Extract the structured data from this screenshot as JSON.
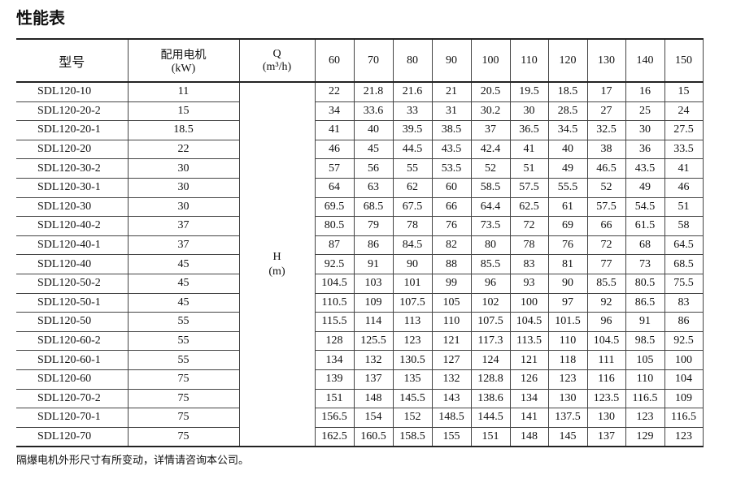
{
  "title": "性能表",
  "header": {
    "model": "型号",
    "motor_line1": "配用电机",
    "motor_line2": "(kW)",
    "q_line1": "Q",
    "q_line2": "(m³/h)",
    "h_line1": "H",
    "h_line2": "(m)",
    "flows": [
      "60",
      "70",
      "80",
      "90",
      "100",
      "110",
      "120",
      "130",
      "140",
      "150"
    ]
  },
  "rows": [
    {
      "model": "SDL120-10",
      "kw": "11",
      "h": [
        "22",
        "21.8",
        "21.6",
        "21",
        "20.5",
        "19.5",
        "18.5",
        "17",
        "16",
        "15"
      ]
    },
    {
      "model": "SDL120-20-2",
      "kw": "15",
      "h": [
        "34",
        "33.6",
        "33",
        "31",
        "30.2",
        "30",
        "28.5",
        "27",
        "25",
        "24"
      ]
    },
    {
      "model": "SDL120-20-1",
      "kw": "18.5",
      "h": [
        "41",
        "40",
        "39.5",
        "38.5",
        "37",
        "36.5",
        "34.5",
        "32.5",
        "30",
        "27.5"
      ]
    },
    {
      "model": "SDL120-20",
      "kw": "22",
      "h": [
        "46",
        "45",
        "44.5",
        "43.5",
        "42.4",
        "41",
        "40",
        "38",
        "36",
        "33.5"
      ]
    },
    {
      "model": "SDL120-30-2",
      "kw": "30",
      "h": [
        "57",
        "56",
        "55",
        "53.5",
        "52",
        "51",
        "49",
        "46.5",
        "43.5",
        "41"
      ]
    },
    {
      "model": "SDL120-30-1",
      "kw": "30",
      "h": [
        "64",
        "63",
        "62",
        "60",
        "58.5",
        "57.5",
        "55.5",
        "52",
        "49",
        "46"
      ]
    },
    {
      "model": "SDL120-30",
      "kw": "30",
      "h": [
        "69.5",
        "68.5",
        "67.5",
        "66",
        "64.4",
        "62.5",
        "61",
        "57.5",
        "54.5",
        "51"
      ]
    },
    {
      "model": "SDL120-40-2",
      "kw": "37",
      "h": [
        "80.5",
        "79",
        "78",
        "76",
        "73.5",
        "72",
        "69",
        "66",
        "61.5",
        "58"
      ]
    },
    {
      "model": "SDL120-40-1",
      "kw": "37",
      "h": [
        "87",
        "86",
        "84.5",
        "82",
        "80",
        "78",
        "76",
        "72",
        "68",
        "64.5"
      ]
    },
    {
      "model": "SDL120-40",
      "kw": "45",
      "h": [
        "92.5",
        "91",
        "90",
        "88",
        "85.5",
        "83",
        "81",
        "77",
        "73",
        "68.5"
      ]
    },
    {
      "model": "SDL120-50-2",
      "kw": "45",
      "h": [
        "104.5",
        "103",
        "101",
        "99",
        "96",
        "93",
        "90",
        "85.5",
        "80.5",
        "75.5"
      ]
    },
    {
      "model": "SDL120-50-1",
      "kw": "45",
      "h": [
        "110.5",
        "109",
        "107.5",
        "105",
        "102",
        "100",
        "97",
        "92",
        "86.5",
        "83"
      ]
    },
    {
      "model": "SDL120-50",
      "kw": "55",
      "h": [
        "115.5",
        "114",
        "113",
        "110",
        "107.5",
        "104.5",
        "101.5",
        "96",
        "91",
        "86"
      ]
    },
    {
      "model": "SDL120-60-2",
      "kw": "55",
      "h": [
        "128",
        "125.5",
        "123",
        "121",
        "117.3",
        "113.5",
        "110",
        "104.5",
        "98.5",
        "92.5"
      ]
    },
    {
      "model": "SDL120-60-1",
      "kw": "55",
      "h": [
        "134",
        "132",
        "130.5",
        "127",
        "124",
        "121",
        "118",
        "111",
        "105",
        "100"
      ]
    },
    {
      "model": "SDL120-60",
      "kw": "75",
      "h": [
        "139",
        "137",
        "135",
        "132",
        "128.8",
        "126",
        "123",
        "116",
        "110",
        "104"
      ]
    },
    {
      "model": "SDL120-70-2",
      "kw": "75",
      "h": [
        "151",
        "148",
        "145.5",
        "143",
        "138.6",
        "134",
        "130",
        "123.5",
        "116.5",
        "109"
      ]
    },
    {
      "model": "SDL120-70-1",
      "kw": "75",
      "h": [
        "156.5",
        "154",
        "152",
        "148.5",
        "144.5",
        "141",
        "137.5",
        "130",
        "123",
        "116.5"
      ]
    },
    {
      "model": "SDL120-70",
      "kw": "75",
      "h": [
        "162.5",
        "160.5",
        "158.5",
        "155",
        "151",
        "148",
        "145",
        "137",
        "129",
        "123"
      ]
    }
  ],
  "note": "隔爆电机外形尺寸有所变动，详情请咨询本公司。"
}
